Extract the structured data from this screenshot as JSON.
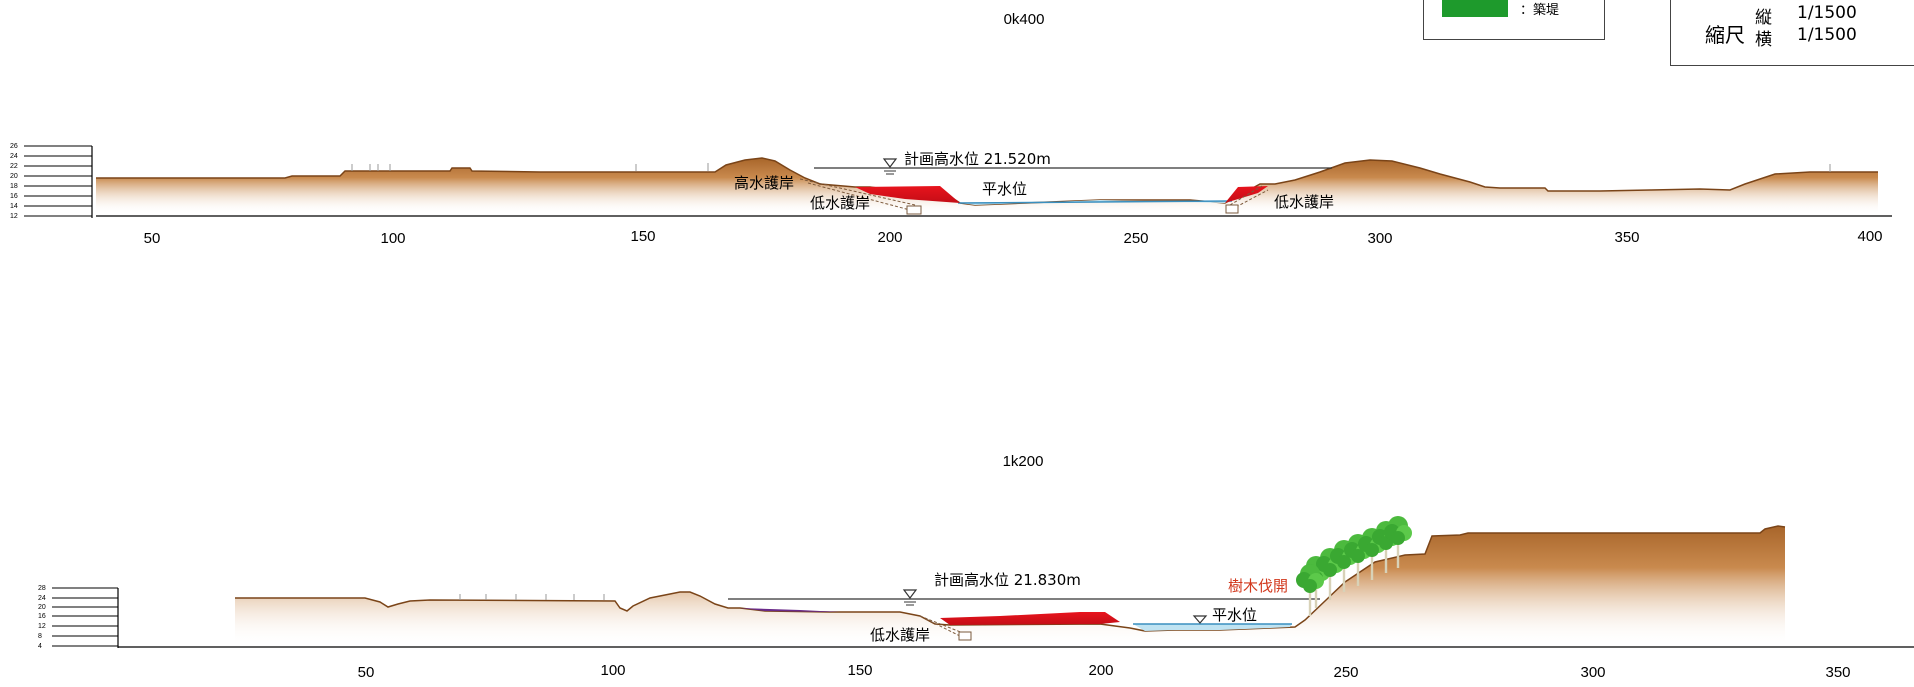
{
  "legend": {
    "swatch_color": "#1e9a2c",
    "label": "：築堤"
  },
  "scale": {
    "title": "縮尺",
    "vertical_label": "縦",
    "vertical_value": "1/1500",
    "horizontal_label": "横",
    "horizontal_value": "1/1500"
  },
  "colors": {
    "ground": "#b9763a",
    "ground_dark": "#8a4f1c",
    "excavation": "#d8141e",
    "water": "#bfe3f2",
    "trees": "#3fb23a",
    "annotation_red": "#d2391e"
  },
  "sections": [
    {
      "id": "0k400",
      "title": "0k400",
      "x_ticks": [
        "50",
        "100",
        "150",
        "200",
        "250",
        "300",
        "350",
        "400"
      ],
      "y_ticks": [
        "26",
        "24",
        "22",
        "20",
        "18",
        "16",
        "14",
        "12"
      ],
      "design_flood_level": "計画高水位 21.520m",
      "labels": {
        "normal_water": "平水位",
        "high_revetment": "高水護岸",
        "low_revetment_left": "低水護岸",
        "low_revetment_right": "低水護岸"
      }
    },
    {
      "id": "1k200",
      "title": "1k200",
      "x_ticks": [
        "50",
        "100",
        "150",
        "200",
        "250",
        "300",
        "350"
      ],
      "y_ticks": [
        "28",
        "24",
        "20",
        "16",
        "12",
        "8",
        "4"
      ],
      "design_flood_level": "計画高水位 21.830m",
      "labels": {
        "normal_water": "平水位",
        "low_revetment": "低水護岸",
        "tree_clearing": "樹木伐開"
      }
    }
  ]
}
